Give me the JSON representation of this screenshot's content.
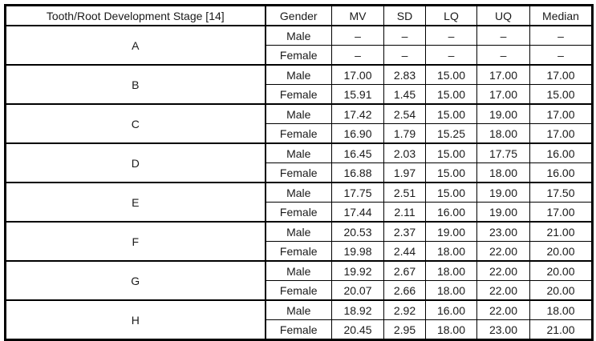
{
  "table": {
    "headers": [
      "Tooth/Root Development Stage [14]",
      "Gender",
      "MV",
      "SD",
      "LQ",
      "UQ",
      "Median"
    ],
    "groups": [
      {
        "stage": "A",
        "rows": [
          {
            "gender": "Male",
            "mv": "–",
            "sd": "–",
            "lq": "–",
            "uq": "–",
            "median": "–"
          },
          {
            "gender": "Female",
            "mv": "–",
            "sd": "–",
            "lq": "–",
            "uq": "–",
            "median": "–"
          }
        ]
      },
      {
        "stage": "B",
        "rows": [
          {
            "gender": "Male",
            "mv": "17.00",
            "sd": "2.83",
            "lq": "15.00",
            "uq": "17.00",
            "median": "17.00"
          },
          {
            "gender": "Female",
            "mv": "15.91",
            "sd": "1.45",
            "lq": "15.00",
            "uq": "17.00",
            "median": "15.00"
          }
        ]
      },
      {
        "stage": "C",
        "rows": [
          {
            "gender": "Male",
            "mv": "17.42",
            "sd": "2.54",
            "lq": "15.00",
            "uq": "19.00",
            "median": "17.00"
          },
          {
            "gender": "Female",
            "mv": "16.90",
            "sd": "1.79",
            "lq": "15.25",
            "uq": "18.00",
            "median": "17.00"
          }
        ]
      },
      {
        "stage": "D",
        "rows": [
          {
            "gender": "Male",
            "mv": "16.45",
            "sd": "2.03",
            "lq": "15.00",
            "uq": "17.75",
            "median": "16.00"
          },
          {
            "gender": "Female",
            "mv": "16.88",
            "sd": "1.97",
            "lq": "15.00",
            "uq": "18.00",
            "median": "16.00"
          }
        ]
      },
      {
        "stage": "E",
        "rows": [
          {
            "gender": "Male",
            "mv": "17.75",
            "sd": "2.51",
            "lq": "15.00",
            "uq": "19.00",
            "median": "17.50"
          },
          {
            "gender": "Female",
            "mv": "17.44",
            "sd": "2.11",
            "lq": "16.00",
            "uq": "19.00",
            "median": "17.00"
          }
        ]
      },
      {
        "stage": "F",
        "rows": [
          {
            "gender": "Male",
            "mv": "20.53",
            "sd": "2.37",
            "lq": "19.00",
            "uq": "23.00",
            "median": "21.00"
          },
          {
            "gender": "Female",
            "mv": "19.98",
            "sd": "2.44",
            "lq": "18.00",
            "uq": "22.00",
            "median": "20.00"
          }
        ]
      },
      {
        "stage": "G",
        "rows": [
          {
            "gender": "Male",
            "mv": "19.92",
            "sd": "2.67",
            "lq": "18.00",
            "uq": "22.00",
            "median": "20.00"
          },
          {
            "gender": "Female",
            "mv": "20.07",
            "sd": "2.66",
            "lq": "18.00",
            "uq": "22.00",
            "median": "20.00"
          }
        ]
      },
      {
        "stage": "H",
        "rows": [
          {
            "gender": "Male",
            "mv": "18.92",
            "sd": "2.92",
            "lq": "16.00",
            "uq": "22.00",
            "median": "18.00"
          },
          {
            "gender": "Female",
            "mv": "20.45",
            "sd": "2.95",
            "lq": "18.00",
            "uq": "23.00",
            "median": "21.00"
          }
        ]
      }
    ]
  }
}
